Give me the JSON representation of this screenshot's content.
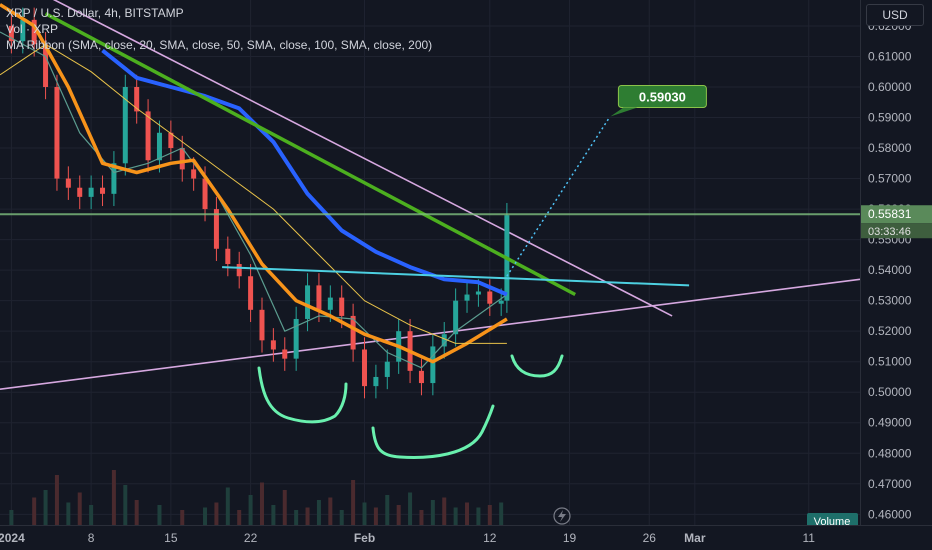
{
  "header": {
    "symbol": "XRP / U.S. Dollar, 4h, BITSTAMP",
    "volume_label": "Vol · XRP",
    "ma_label": "MA Ribbon (SMA, close, 20, SMA, close, 50, SMA, close, 100, SMA, close, 200)",
    "currency_button": "USD"
  },
  "colors": {
    "background": "#131722",
    "grid": "#1f2330",
    "up": "#26a69a",
    "down": "#ef5350",
    "ma20": "#5b9c8f",
    "ma50": "#f7931a",
    "ma100": "#2962ff",
    "ma200": "#e8c24a",
    "trend_green": "#4caf1f",
    "trend_lilac": "#d6a8e0",
    "neckline": "#4dd0e1",
    "pattern": "#69f0ae",
    "price_label": "#5a8a5a",
    "target_label": "#2e7d32"
  },
  "chart_data": {
    "type": "line",
    "instrument": "XRP / U.S. Dollar",
    "interval": "4h",
    "exchange": "BITSTAMP",
    "y_axis": {
      "ticks": [
        0.62,
        0.61,
        0.6,
        0.59,
        0.58,
        0.57,
        0.56,
        0.55,
        0.54,
        0.53,
        0.52,
        0.51,
        0.5,
        0.49,
        0.48,
        0.47,
        0.46
      ],
      "tick_labels": [
        "0.62000",
        "0.61000",
        "0.60000",
        "0.59000",
        "0.58000",
        "0.57000",
        "0.56000",
        "0.55000",
        "0.54000",
        "0.53000",
        "0.52000",
        "0.51000",
        "0.50000",
        "0.49000",
        "0.48000",
        "0.47000",
        "0.46000"
      ],
      "ylim": [
        0.4565,
        0.6285
      ]
    },
    "x_axis": {
      "tick_labels": [
        "2024",
        "8",
        "15",
        "22",
        "Feb",
        "12",
        "19",
        "26",
        "Mar",
        "11"
      ],
      "tick_days": [
        1,
        8,
        15,
        22,
        32,
        43,
        50,
        57,
        61,
        71
      ],
      "xlim_days": [
        0,
        75.5
      ]
    },
    "close_series": {
      "name": "XRP",
      "x_days": [
        0,
        1,
        2,
        3,
        4,
        5,
        6,
        7,
        8,
        9,
        10,
        11,
        12,
        13,
        14,
        15,
        16,
        17,
        18,
        19,
        20,
        21,
        22,
        23,
        24,
        25,
        26,
        27,
        28,
        29,
        30,
        31,
        32,
        33,
        34,
        35,
        36,
        37,
        38,
        39,
        40,
        41,
        42,
        43,
        44,
        44.5
      ],
      "values": [
        0.62,
        0.615,
        0.622,
        0.614,
        0.6,
        0.57,
        0.567,
        0.564,
        0.567,
        0.565,
        0.575,
        0.6,
        0.592,
        0.576,
        0.585,
        0.58,
        0.573,
        0.57,
        0.56,
        0.547,
        0.542,
        0.538,
        0.527,
        0.517,
        0.514,
        0.511,
        0.524,
        0.535,
        0.527,
        0.531,
        0.525,
        0.514,
        0.502,
        0.505,
        0.51,
        0.52,
        0.507,
        0.503,
        0.515,
        0.519,
        0.53,
        0.532,
        0.533,
        0.529,
        0.53,
        0.558
      ]
    },
    "moving_averages": [
      {
        "name": "20",
        "x_days": [
          0,
          4,
          7,
          10,
          13,
          16,
          19,
          22,
          25,
          28,
          31,
          34,
          37,
          40,
          43,
          44.5
        ],
        "values": [
          0.618,
          0.61,
          0.585,
          0.572,
          0.575,
          0.58,
          0.565,
          0.545,
          0.52,
          0.525,
          0.524,
          0.513,
          0.508,
          0.52,
          0.528,
          0.532
        ]
      },
      {
        "name": "50",
        "x_days": [
          0,
          3,
          6,
          9,
          12,
          15,
          17,
          20,
          23,
          26,
          29,
          32,
          35,
          38,
          41,
          44.5
        ],
        "values": [
          0.627,
          0.62,
          0.6,
          0.575,
          0.572,
          0.575,
          0.576,
          0.56,
          0.542,
          0.53,
          0.525,
          0.519,
          0.515,
          0.51,
          0.516,
          0.524
        ]
      },
      {
        "name": "100",
        "x_days": [
          9,
          12,
          15,
          18,
          21,
          24,
          27,
          30,
          33,
          36,
          39,
          42,
          44.5
        ],
        "values": [
          0.612,
          0.603,
          0.6,
          0.597,
          0.593,
          0.582,
          0.565,
          0.553,
          0.546,
          0.541,
          0.537,
          0.536,
          0.532
        ]
      },
      {
        "name": "200",
        "x_days": [
          0,
          4,
          8,
          12,
          16,
          20,
          24,
          28,
          32,
          36,
          40,
          44.5
        ],
        "values": [
          0.604,
          0.614,
          0.605,
          0.593,
          0.582,
          0.571,
          0.56,
          0.545,
          0.53,
          0.522,
          0.516,
          0.516
        ]
      }
    ],
    "trendlines": [
      {
        "name": "green_resistance",
        "x_days": [
          4,
          50.5
        ],
        "values": [
          0.624,
          0.532
        ]
      },
      {
        "name": "lilac_upper",
        "x_days": [
          4,
          59
        ],
        "values": [
          0.63,
          0.525
        ]
      },
      {
        "name": "lilac_lower",
        "x_days": [
          0,
          75.5
        ],
        "values": [
          0.501,
          0.537
        ]
      },
      {
        "name": "neckline",
        "x_days": [
          19.5,
          60.5
        ],
        "values": [
          0.541,
          0.535
        ]
      }
    ],
    "projection": {
      "x_days": [
        44.5,
        53.5
      ],
      "values": [
        0.538,
        0.59
      ]
    },
    "current_price": 0.55831,
    "current_price_label": "0.55831",
    "countdown": "03:33:46",
    "target_label": "0.59030",
    "volume_tag": "Volume",
    "volume": {
      "x_days": [
        1,
        3,
        4,
        5,
        6,
        7,
        8,
        10,
        11,
        12,
        14,
        16,
        18,
        19,
        20,
        21,
        22,
        23,
        24,
        25,
        26,
        27,
        28,
        29,
        30,
        31,
        32,
        33,
        34,
        35,
        36,
        37,
        38,
        39,
        40,
        41,
        42,
        43,
        44
      ],
      "values": [
        6,
        11,
        14,
        20,
        9,
        13,
        8,
        22,
        16,
        10,
        8,
        6,
        7,
        9,
        15,
        6,
        12,
        17,
        8,
        14,
        6,
        7,
        10,
        11,
        6,
        18,
        9,
        7,
        12,
        8,
        13,
        6,
        10,
        11,
        7,
        9,
        7,
        8,
        9
      ]
    }
  }
}
